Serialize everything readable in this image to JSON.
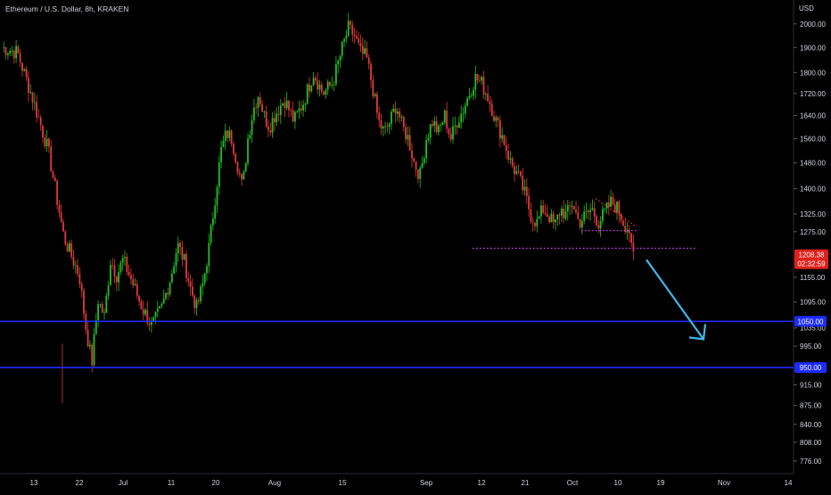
{
  "chart_data": {
    "type": "candlestick",
    "title": "Ethereum / U.S. Dollar, 8h, KRAKEN",
    "currency_label": "USD",
    "y_scale": "log",
    "ylim": [
      755,
      2090
    ],
    "y_ticks": [
      "2000.00",
      "1900.00",
      "1800.00",
      "1720.00",
      "1640.00",
      "1560.00",
      "1480.00",
      "1400.00",
      "1325.00",
      "1275.00",
      "1155.00",
      "1095.00",
      "1035.00",
      "995.00",
      "915.00",
      "875.00",
      "840.00",
      "808.00",
      "776.00"
    ],
    "x_ticks": [
      "13",
      "22",
      "Jul",
      "11",
      "20",
      "Aug",
      "15",
      "Sep",
      "12",
      "21",
      "Oct",
      "10",
      "19",
      "Nov",
      "14"
    ],
    "last_price": "1208.38",
    "countdown": "02:32:59",
    "price_path": [
      [
        "13",
        1900
      ],
      [
        "13",
        1880
      ],
      [
        "13",
        1700
      ],
      [
        "13",
        1520
      ],
      [
        "13",
        1260
      ],
      [
        "22",
        1160
      ],
      [
        "22",
        1040
      ],
      [
        "22",
        960
      ],
      [
        "22",
        1100
      ],
      [
        "22",
        1060
      ],
      [
        "22",
        1200
      ],
      [
        "22",
        1160
      ],
      [
        "Jul",
        1200
      ],
      [
        "Jul",
        1140
      ],
      [
        "Jul",
        1080
      ],
      [
        "Jul",
        1040
      ],
      [
        "Jul",
        1080
      ],
      [
        "11",
        1160
      ],
      [
        "11",
        1240
      ],
      [
        "11",
        1200
      ],
      [
        "11",
        1130
      ],
      [
        "11",
        1080
      ],
      [
        "11",
        1140
      ],
      [
        "11",
        1240
      ],
      [
        "20",
        1390
      ],
      [
        "20",
        1520
      ],
      [
        "20",
        1580
      ],
      [
        "20",
        1560
      ],
      [
        "20",
        1480
      ],
      [
        "20",
        1400
      ],
      [
        "20",
        1560
      ],
      [
        "20",
        1660
      ],
      [
        "20",
        1720
      ],
      [
        "20",
        1640
      ],
      [
        "20",
        1600
      ],
      [
        "Aug",
        1640
      ],
      [
        "Aug",
        1700
      ],
      [
        "Aug",
        1620
      ],
      [
        "Aug",
        1690
      ],
      [
        "Aug",
        1800
      ],
      [
        "Aug",
        1720
      ],
      [
        "Aug",
        1760
      ],
      [
        "15",
        1900
      ],
      [
        "15",
        1980
      ],
      [
        "15",
        1950
      ],
      [
        "15",
        1880
      ],
      [
        "15",
        1860
      ],
      [
        "15",
        1750
      ],
      [
        "15",
        1620
      ],
      [
        "15",
        1580
      ],
      [
        "15",
        1620
      ],
      [
        "15",
        1680
      ],
      [
        "15",
        1600
      ],
      [
        "15",
        1560
      ],
      [
        "15",
        1480
      ],
      [
        "15",
        1440
      ],
      [
        "Sep",
        1560
      ],
      [
        "Sep",
        1620
      ],
      [
        "Sep",
        1580
      ],
      [
        "Sep",
        1640
      ],
      [
        "Sep",
        1560
      ],
      [
        "Sep",
        1620
      ],
      [
        "Sep",
        1660
      ],
      [
        "Sep",
        1720
      ],
      [
        "Sep",
        1780
      ],
      [
        "12",
        1760
      ],
      [
        "12",
        1700
      ],
      [
        "12",
        1620
      ],
      [
        "12",
        1560
      ],
      [
        "12",
        1480
      ],
      [
        "12",
        1440
      ],
      [
        "21",
        1380
      ],
      [
        "21",
        1320
      ],
      [
        "21",
        1300
      ],
      [
        "21",
        1340
      ],
      [
        "21",
        1320
      ],
      [
        "21",
        1290
      ],
      [
        "21",
        1340
      ],
      [
        "21",
        1320
      ],
      [
        "Oct",
        1360
      ],
      [
        "Oct",
        1300
      ],
      [
        "Oct",
        1320
      ],
      [
        "Oct",
        1340
      ],
      [
        "Oct",
        1300
      ],
      [
        "Oct",
        1330
      ],
      [
        "Oct",
        1360
      ],
      [
        "10",
        1340
      ],
      [
        "10",
        1320
      ],
      [
        "10",
        1300
      ],
      [
        "10",
        1290
      ],
      [
        "10",
        1280
      ],
      [
        "10",
        1208.38
      ]
    ],
    "horizontal_levels": [
      {
        "label": "1050.00",
        "value": 1050,
        "color": "#1e2bff"
      },
      {
        "label": "950.00",
        "value": 950,
        "color": "#1e2bff"
      }
    ],
    "dotted_levels": [
      {
        "value": 1230,
        "from": "21",
        "to": "19",
        "color": "#e040fb"
      },
      {
        "value": 1278,
        "from": "Oct",
        "to": "10",
        "color": "#e040fb"
      }
    ],
    "dotted_trendline": {
      "from": [
        "Oct",
        1370
      ],
      "to": [
        "10",
        1290
      ],
      "color": "#ff2a2a"
    },
    "arrow": {
      "from": [
        "10",
        1200
      ],
      "to": [
        "19",
        1010
      ],
      "color": "#3fb6e8"
    },
    "colors": {
      "up": "#22c022",
      "down": "#e23a3a",
      "background": "#000000",
      "axis_text": "#d1d4dc",
      "price_label_bg": "#e0201b"
    }
  }
}
